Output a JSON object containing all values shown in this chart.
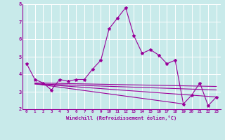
{
  "xlabel": "Windchill (Refroidissement éolien,°C)",
  "x": [
    0,
    1,
    2,
    3,
    4,
    5,
    6,
    7,
    8,
    9,
    10,
    11,
    12,
    13,
    14,
    15,
    16,
    17,
    18,
    19,
    20,
    21,
    22,
    23
  ],
  "line1": [
    4.6,
    3.7,
    3.5,
    3.1,
    3.7,
    3.6,
    3.7,
    3.7,
    4.3,
    4.8,
    6.6,
    7.2,
    7.8,
    6.2,
    5.2,
    5.4,
    5.1,
    4.6,
    4.8,
    2.3,
    2.8,
    3.5,
    2.2,
    2.7
  ],
  "reg_lines": [
    [
      [
        1,
        23
      ],
      [
        3.5,
        3.3
      ]
    ],
    [
      [
        1,
        23
      ],
      [
        3.45,
        3.1
      ]
    ],
    [
      [
        1,
        19
      ],
      [
        3.45,
        2.3
      ]
    ],
    [
      [
        1,
        23
      ],
      [
        3.45,
        2.7
      ]
    ]
  ],
  "ylim": [
    2,
    8
  ],
  "xlim": [
    -0.5,
    23.5
  ],
  "yticks": [
    2,
    3,
    4,
    5,
    6,
    7,
    8
  ],
  "xticks": [
    0,
    1,
    2,
    3,
    4,
    5,
    6,
    7,
    8,
    9,
    10,
    11,
    12,
    13,
    14,
    15,
    16,
    17,
    18,
    19,
    20,
    21,
    22,
    23
  ],
  "color": "#990099",
  "bg_color": "#c8eaea",
  "grid_color": "#b0d8d8",
  "line_width": 0.8,
  "marker_size": 3.0
}
